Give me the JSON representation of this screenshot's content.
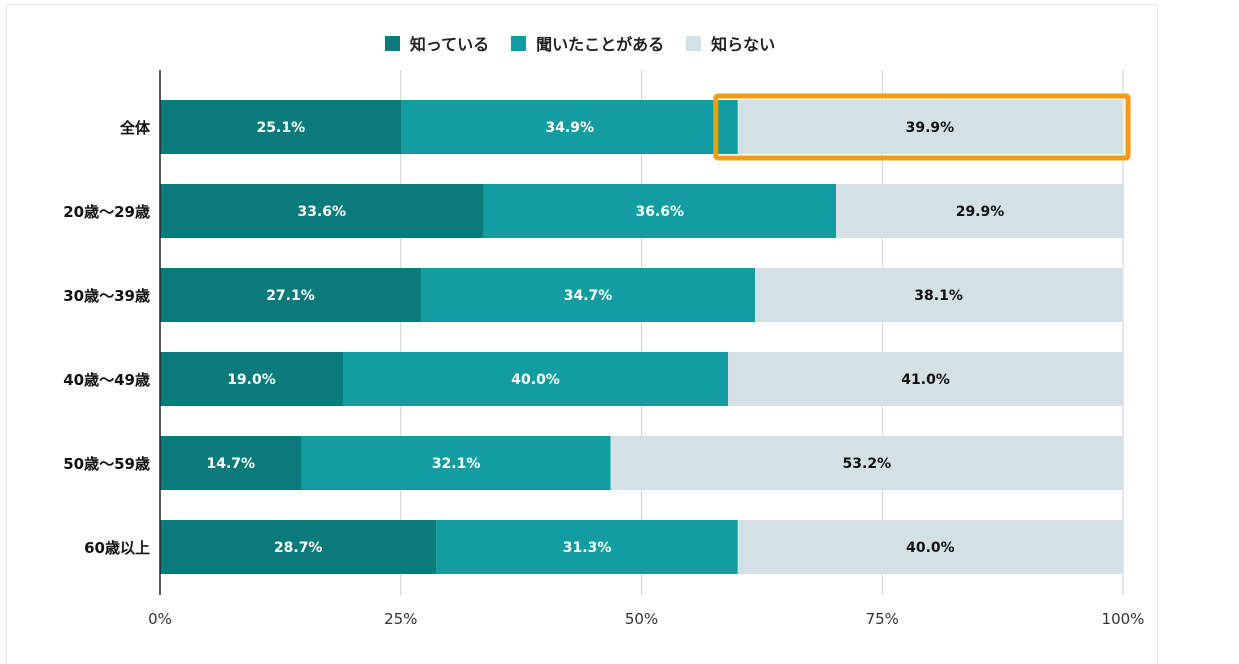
{
  "chart_data": {
    "type": "bar",
    "orientation": "horizontal",
    "stacked": true,
    "categories": [
      "全体",
      "20歳〜29歳",
      "30歳〜39歳",
      "40歳〜49歳",
      "50歳〜59歳",
      "60歳以上"
    ],
    "series": [
      {
        "name": "知っている",
        "color": "#0a7a7b",
        "label_color": "#ffffff",
        "values": [
          25.1,
          33.6,
          27.1,
          19.0,
          14.7,
          28.7
        ],
        "labels": [
          "25.1%",
          "33.6%",
          "27.1%",
          "19.0%",
          "14.7%",
          "28.7%"
        ]
      },
      {
        "name": "聞いたことがある",
        "color": "#149da0",
        "label_color": "#ffffff",
        "values": [
          34.9,
          36.6,
          34.7,
          40.0,
          32.1,
          31.3
        ],
        "labels": [
          "34.9%",
          "36.6%",
          "34.7%",
          "40.0%",
          "32.1%",
          "31.3%"
        ]
      },
      {
        "name": "知らない",
        "color": "#d4e1e4",
        "label_color": "#111111",
        "values": [
          39.9,
          29.9,
          38.1,
          41.0,
          53.2,
          40.0
        ],
        "labels": [
          "39.9%",
          "29.9%",
          "38.1%",
          "41.0%",
          "53.2%",
          "40.0%"
        ]
      }
    ],
    "xlim": [
      0,
      100
    ],
    "xticks": [
      "0%",
      "25%",
      "50%",
      "75%",
      "100%"
    ],
    "grid": true,
    "legend_position": "top",
    "highlight": {
      "category_index": 0,
      "series_index": 2,
      "color": "#f39c12"
    }
  }
}
